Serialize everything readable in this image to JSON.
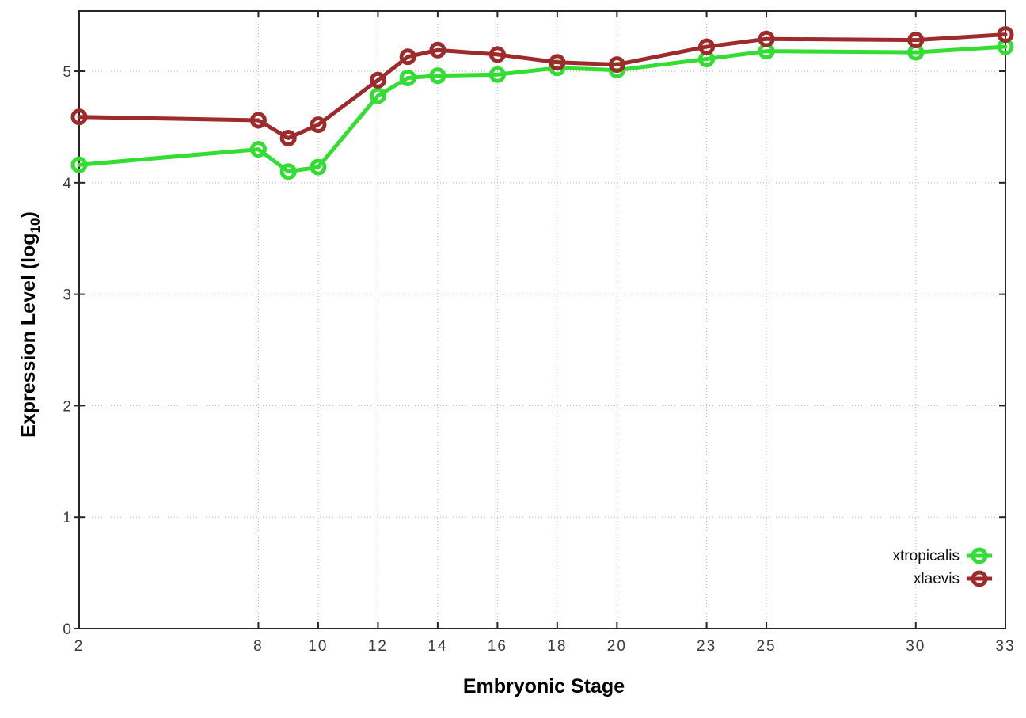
{
  "chart_data": {
    "type": "line",
    "title": "",
    "xlabel": "Embryonic Stage",
    "ylabel": {
      "main": "Expression Level (log",
      "subscript": "10",
      "close": ")"
    },
    "x": [
      2,
      8,
      9,
      10,
      12,
      13,
      14,
      16,
      18,
      20,
      23,
      25,
      30,
      33
    ],
    "x_tick_values": [
      2,
      8,
      10,
      12,
      14,
      16,
      18,
      20,
      23,
      25,
      30,
      33
    ],
    "x_tick_labels": [
      "2",
      "8",
      "10",
      "12",
      "14",
      "16",
      "18",
      "20",
      "23",
      "25",
      "30",
      "33"
    ],
    "y_tick_values": [
      0,
      1,
      2,
      3,
      4,
      5
    ],
    "y_tick_labels": [
      "0",
      "1",
      "2",
      "3",
      "4",
      "5"
    ],
    "xlim": [
      2,
      33
    ],
    "ylim": [
      0,
      5.54
    ],
    "grid": "dotted",
    "legend": {
      "position": "inside-bottom-right",
      "entries": [
        "xtropicalis",
        "xlaevis"
      ]
    },
    "series": [
      {
        "name": "xtropicalis",
        "color": "#33dd33",
        "marker": "open-circle",
        "values": [
          4.16,
          4.3,
          4.1,
          4.14,
          4.78,
          4.94,
          4.96,
          4.97,
          5.03,
          5.01,
          5.11,
          5.18,
          5.17,
          5.22
        ]
      },
      {
        "name": "xlaevis",
        "color": "#9e2b2b",
        "marker": "open-circle",
        "values": [
          4.59,
          4.56,
          4.4,
          4.52,
          4.92,
          5.13,
          5.19,
          5.15,
          5.08,
          5.06,
          5.22,
          5.29,
          5.28,
          5.33
        ]
      }
    ]
  },
  "style": {
    "background": "#ffffff",
    "grid_color": "#b8b8b8",
    "axis_color": "#262626",
    "tick_label_color": "#3a3a3a",
    "axis_label_color": "#000000"
  }
}
